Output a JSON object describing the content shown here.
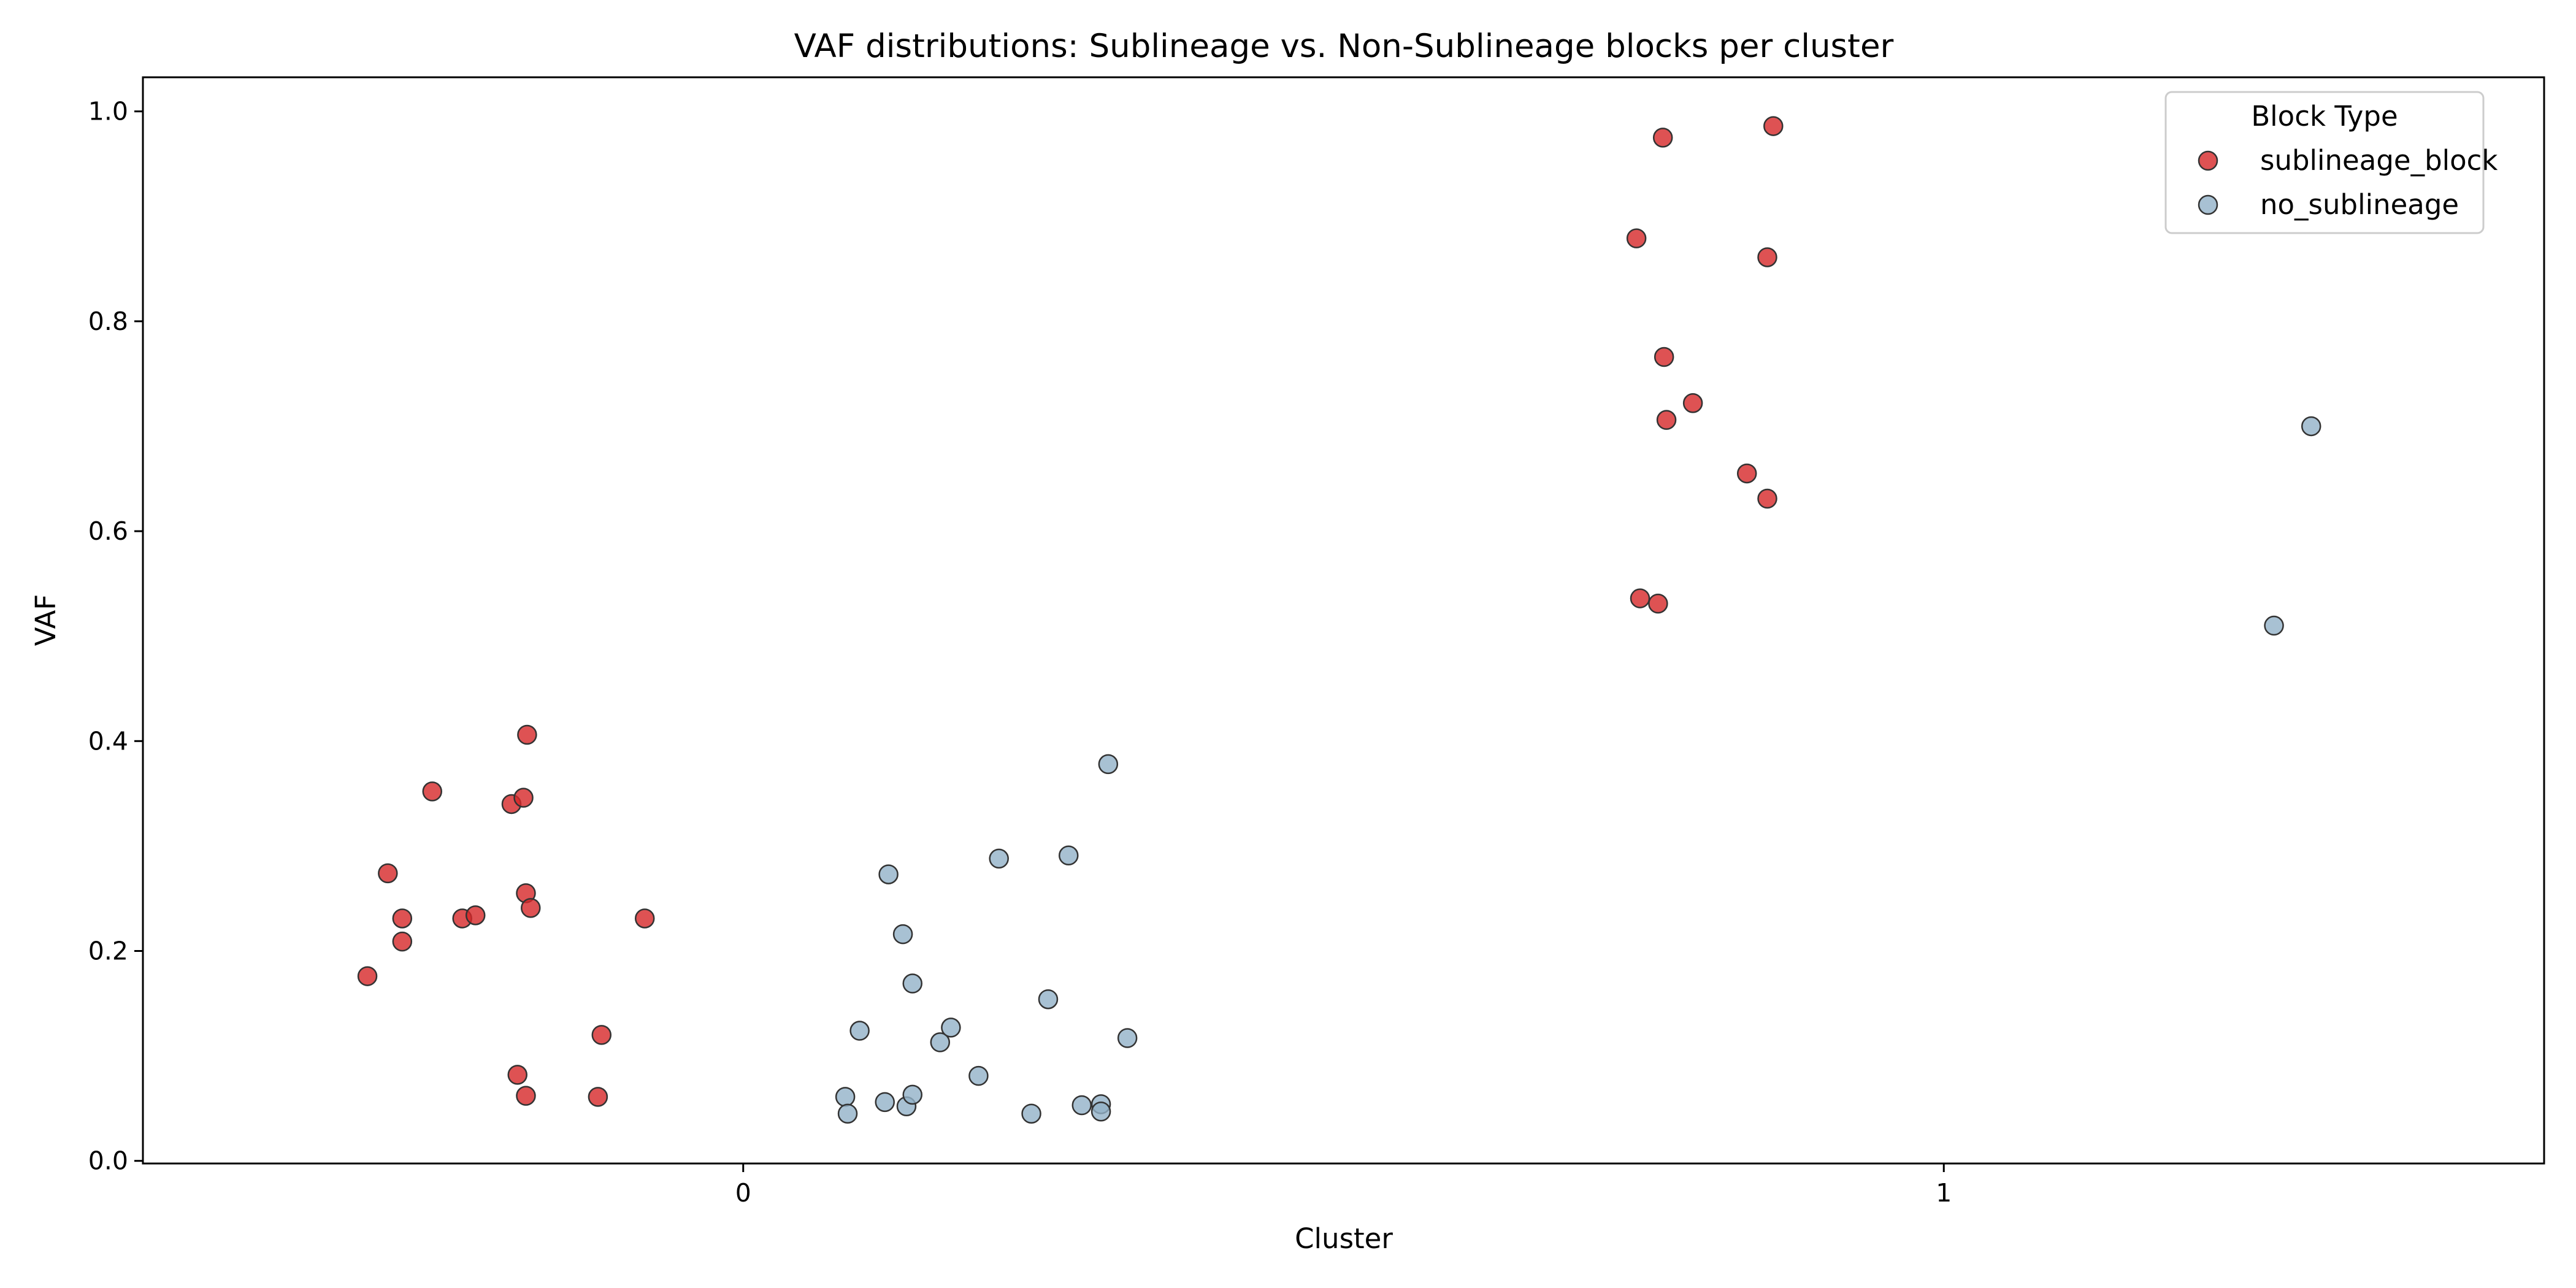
{
  "chart_data": {
    "type": "scatter",
    "title": "VAF distributions: Sublineage vs. Non-Sublineage blocks per cluster",
    "xlabel": "Cluster",
    "ylabel": "VAF",
    "xlim": [
      -0.5,
      1.5
    ],
    "ylim": [
      -0.0025,
      1.0325
    ],
    "x_ticks": [
      0,
      1
    ],
    "x_tick_labels": [
      "0",
      "1"
    ],
    "y_ticks": [
      0.0,
      0.2,
      0.4,
      0.6,
      0.8,
      1.0
    ],
    "y_tick_labels": [
      "0.0",
      "0.2",
      "0.4",
      "0.6",
      "0.8",
      "1.0"
    ],
    "grid": false,
    "legend": {
      "title": "Block Type",
      "placement": "top-right",
      "entries": [
        "sublineage_block",
        "no_sublineage"
      ]
    },
    "series": [
      {
        "name": "sublineage_block",
        "color": "#d62728",
        "points": [
          {
            "x": -0.313,
            "y": 0.176
          },
          {
            "x": -0.296,
            "y": 0.274
          },
          {
            "x": -0.284,
            "y": 0.231
          },
          {
            "x": -0.284,
            "y": 0.209
          },
          {
            "x": -0.259,
            "y": 0.352
          },
          {
            "x": -0.234,
            "y": 0.231
          },
          {
            "x": -0.223,
            "y": 0.234
          },
          {
            "x": -0.193,
            "y": 0.34
          },
          {
            "x": -0.183,
            "y": 0.346
          },
          {
            "x": -0.18,
            "y": 0.406
          },
          {
            "x": -0.181,
            "y": 0.255
          },
          {
            "x": -0.177,
            "y": 0.241
          },
          {
            "x": -0.188,
            "y": 0.082
          },
          {
            "x": -0.181,
            "y": 0.062
          },
          {
            "x": -0.118,
            "y": 0.12
          },
          {
            "x": -0.121,
            "y": 0.061
          },
          {
            "x": -0.082,
            "y": 0.231
          },
          {
            "x": 0.744,
            "y": 0.879
          },
          {
            "x": 0.766,
            "y": 0.975
          },
          {
            "x": 0.767,
            "y": 0.766
          },
          {
            "x": 0.769,
            "y": 0.706
          },
          {
            "x": 0.791,
            "y": 0.722
          },
          {
            "x": 0.747,
            "y": 0.536
          },
          {
            "x": 0.762,
            "y": 0.531
          },
          {
            "x": 0.836,
            "y": 0.655
          },
          {
            "x": 0.853,
            "y": 0.861
          },
          {
            "x": 0.858,
            "y": 0.986
          },
          {
            "x": 0.853,
            "y": 0.631
          }
        ]
      },
      {
        "name": "no_sublineage",
        "color": "#92b1c8",
        "points": [
          {
            "x": 0.085,
            "y": 0.061
          },
          {
            "x": 0.087,
            "y": 0.045
          },
          {
            "x": 0.097,
            "y": 0.124
          },
          {
            "x": 0.118,
            "y": 0.056
          },
          {
            "x": 0.121,
            "y": 0.273
          },
          {
            "x": 0.133,
            "y": 0.216
          },
          {
            "x": 0.136,
            "y": 0.052
          },
          {
            "x": 0.141,
            "y": 0.169
          },
          {
            "x": 0.141,
            "y": 0.063
          },
          {
            "x": 0.164,
            "y": 0.113
          },
          {
            "x": 0.173,
            "y": 0.127
          },
          {
            "x": 0.196,
            "y": 0.081
          },
          {
            "x": 0.213,
            "y": 0.288
          },
          {
            "x": 0.24,
            "y": 0.045
          },
          {
            "x": 0.254,
            "y": 0.154
          },
          {
            "x": 0.271,
            "y": 0.291
          },
          {
            "x": 0.282,
            "y": 0.053
          },
          {
            "x": 0.298,
            "y": 0.054
          },
          {
            "x": 0.298,
            "y": 0.047
          },
          {
            "x": 0.304,
            "y": 0.378
          },
          {
            "x": 0.32,
            "y": 0.117
          },
          {
            "x": 1.275,
            "y": 0.51
          },
          {
            "x": 1.306,
            "y": 0.7
          }
        ]
      }
    ]
  }
}
